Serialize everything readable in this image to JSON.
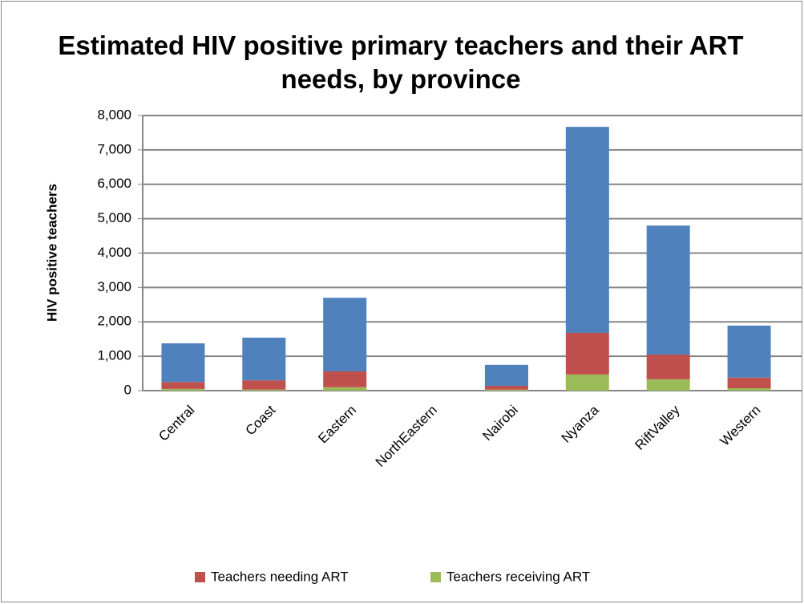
{
  "chart_data": {
    "type": "bar",
    "stacked": true,
    "title": "Estimated HIV positive primary teachers and their ART needs, by province",
    "y_label": "HIV positive teachers",
    "categories": [
      "Central",
      "Coast",
      "Eastern",
      "NorthEastern",
      "Nairobi",
      "Nyanza",
      "RiftValley",
      "Western"
    ],
    "series": [
      {
        "name": "Teachers receiving ART",
        "color": "#9bbb59",
        "values": [
          50,
          30,
          100,
          0,
          30,
          470,
          330,
          70
        ]
      },
      {
        "name": "Teachers needing ART",
        "color": "#c0504d",
        "values": [
          200,
          270,
          460,
          0,
          110,
          1210,
          720,
          310
        ]
      },
      {
        "color": "#4f81bd",
        "values": [
          1125,
          1240,
          2140,
          0,
          610,
          5990,
          3750,
          1510
        ]
      }
    ],
    "ylim": [
      0,
      8000
    ],
    "yticks": [
      0,
      {
        "value": 1000,
        "label": "1,000"
      },
      {
        "value": 2000,
        "label": "2,000"
      },
      {
        "value": 3000,
        "label": "3,000"
      },
      {
        "value": 4000,
        "label": "4,000"
      },
      {
        "value": 5000,
        "label": "5,000"
      },
      {
        "value": 6000,
        "label": "6,000"
      },
      {
        "value": 7000,
        "label": "7,000"
      },
      {
        "value": 8000,
        "label": "8,000"
      }
    ],
    "grid": true,
    "legend": "bottom"
  }
}
